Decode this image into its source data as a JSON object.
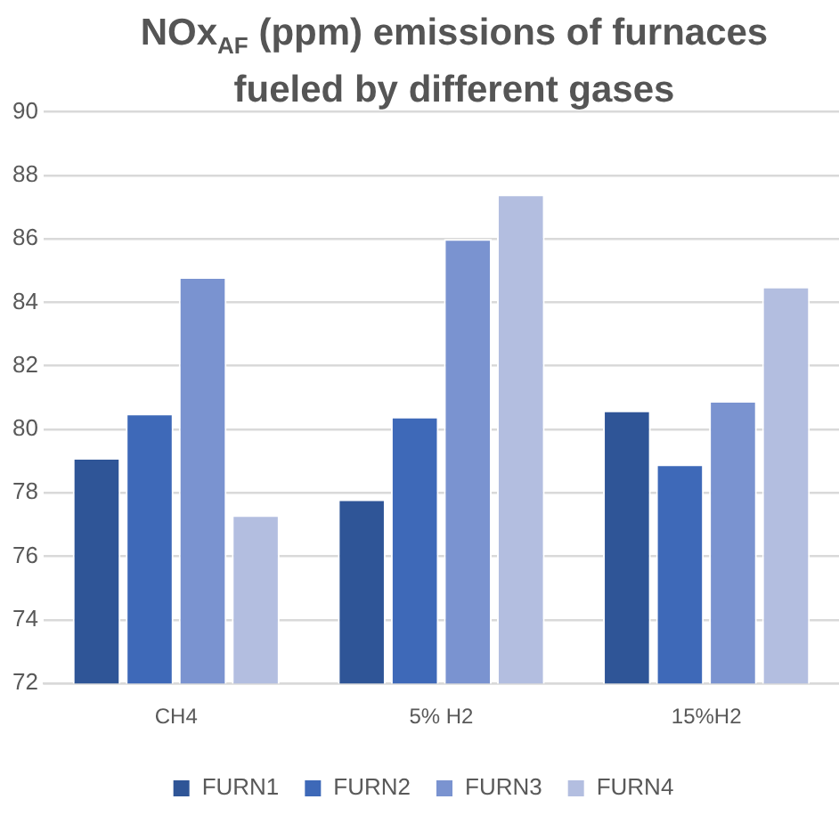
{
  "chart_data": {
    "type": "bar",
    "title": "NOx$_{AF}$ (ppm) emissions of furnaces fueled by different gases",
    "categories": [
      "CH4",
      "5% H2",
      "15%H2"
    ],
    "series": [
      {
        "name": "FURN1",
        "color": "#2f5597",
        "values": [
          79.1,
          77.8,
          80.6
        ]
      },
      {
        "name": "FURN2",
        "color": "#3e69b8",
        "values": [
          80.5,
          80.4,
          78.9
        ]
      },
      {
        "name": "FURN3",
        "color": "#7a93d0",
        "values": [
          84.8,
          86.0,
          80.9
        ]
      },
      {
        "name": "FURN4",
        "color": "#b3bee0",
        "values": [
          77.3,
          87.4,
          84.5
        ]
      }
    ],
    "ylim": [
      72,
      90
    ],
    "yticks": [
      72,
      74,
      76,
      78,
      80,
      82,
      84,
      86,
      88,
      90
    ],
    "grid": "y",
    "legend": "bottom"
  }
}
